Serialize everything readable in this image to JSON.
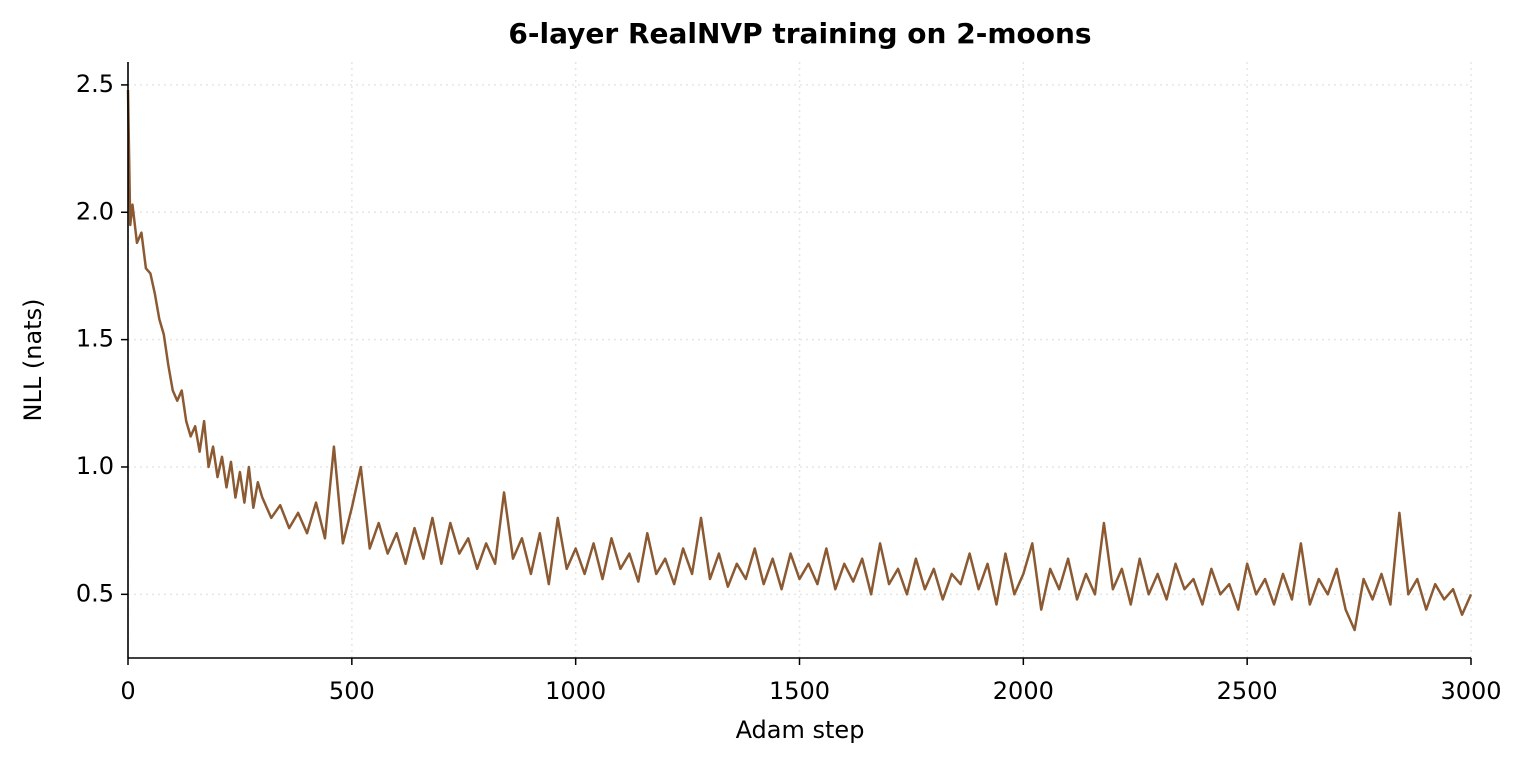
{
  "chart_data": {
    "type": "line",
    "title": "6-layer RealNVP training on 2-moons",
    "x_label": "Adam step",
    "y_label": "NLL (nats)",
    "color": "#8b5a32",
    "grid": true,
    "xlim": [
      0,
      3000
    ],
    "ylim": [
      0.25,
      2.59
    ],
    "xticks": [
      0,
      500,
      1000,
      1500,
      2000,
      2500,
      3000
    ],
    "yticks": [
      0.5,
      {
        "value": 1,
        "label": "1.0"
      },
      1.5,
      {
        "value": 2,
        "label": "2.0"
      },
      2.5
    ],
    "x": [
      0,
      5,
      10,
      20,
      30,
      40,
      50,
      60,
      70,
      80,
      90,
      100,
      110,
      120,
      130,
      140,
      150,
      160,
      170,
      180,
      190,
      200,
      210,
      220,
      230,
      240,
      250,
      260,
      270,
      280,
      290,
      300,
      320,
      340,
      360,
      380,
      400,
      420,
      440,
      460,
      480,
      500,
      520,
      540,
      560,
      580,
      600,
      620,
      640,
      660,
      680,
      700,
      720,
      740,
      760,
      780,
      800,
      820,
      840,
      860,
      880,
      900,
      920,
      940,
      960,
      980,
      1000,
      1020,
      1040,
      1060,
      1080,
      1100,
      1120,
      1140,
      1160,
      1180,
      1200,
      1220,
      1240,
      1260,
      1280,
      1300,
      1320,
      1340,
      1360,
      1380,
      1400,
      1420,
      1440,
      1460,
      1480,
      1500,
      1520,
      1540,
      1560,
      1580,
      1600,
      1620,
      1640,
      1660,
      1680,
      1700,
      1720,
      1740,
      1760,
      1780,
      1800,
      1820,
      1840,
      1860,
      1880,
      1900,
      1920,
      1940,
      1960,
      1980,
      2000,
      2020,
      2040,
      2060,
      2080,
      2100,
      2120,
      2140,
      2160,
      2180,
      2200,
      2220,
      2240,
      2260,
      2280,
      2300,
      2320,
      2340,
      2360,
      2380,
      2400,
      2420,
      2440,
      2460,
      2480,
      2500,
      2520,
      2540,
      2560,
      2580,
      2600,
      2620,
      2640,
      2660,
      2680,
      2700,
      2720,
      2740,
      2760,
      2780,
      2800,
      2820,
      2840,
      2860,
      2880,
      2900,
      2920,
      2940,
      2960,
      2980,
      3000
    ],
    "values": [
      2.48,
      1.95,
      2.03,
      1.88,
      1.92,
      1.78,
      1.76,
      1.68,
      1.58,
      1.52,
      1.4,
      1.3,
      1.26,
      1.3,
      1.18,
      1.12,
      1.16,
      1.06,
      1.18,
      1.0,
      1.08,
      0.96,
      1.04,
      0.92,
      1.02,
      0.88,
      0.98,
      0.86,
      1.0,
      0.84,
      0.94,
      0.88,
      0.8,
      0.85,
      0.76,
      0.82,
      0.74,
      0.86,
      0.72,
      1.08,
      0.7,
      0.84,
      1.0,
      0.68,
      0.78,
      0.66,
      0.74,
      0.62,
      0.76,
      0.64,
      0.8,
      0.62,
      0.78,
      0.66,
      0.72,
      0.6,
      0.7,
      0.62,
      0.9,
      0.64,
      0.72,
      0.58,
      0.74,
      0.54,
      0.8,
      0.6,
      0.68,
      0.58,
      0.7,
      0.56,
      0.72,
      0.6,
      0.66,
      0.55,
      0.74,
      0.58,
      0.64,
      0.54,
      0.68,
      0.58,
      0.8,
      0.56,
      0.66,
      0.53,
      0.62,
      0.56,
      0.68,
      0.54,
      0.64,
      0.52,
      0.66,
      0.56,
      0.62,
      0.54,
      0.68,
      0.52,
      0.62,
      0.55,
      0.64,
      0.5,
      0.7,
      0.54,
      0.6,
      0.5,
      0.64,
      0.52,
      0.6,
      0.48,
      0.58,
      0.54,
      0.66,
      0.52,
      0.62,
      0.46,
      0.66,
      0.5,
      0.58,
      0.7,
      0.44,
      0.6,
      0.52,
      0.64,
      0.48,
      0.58,
      0.5,
      0.78,
      0.52,
      0.6,
      0.46,
      0.64,
      0.5,
      0.58,
      0.48,
      0.62,
      0.52,
      0.56,
      0.46,
      0.6,
      0.5,
      0.54,
      0.44,
      0.62,
      0.5,
      0.56,
      0.46,
      0.58,
      0.48,
      0.7,
      0.46,
      0.56,
      0.5,
      0.6,
      0.44,
      0.36,
      0.56,
      0.48,
      0.58,
      0.46,
      0.82,
      0.5,
      0.56,
      0.44,
      0.54,
      0.48,
      0.52,
      0.42,
      0.5
    ]
  }
}
